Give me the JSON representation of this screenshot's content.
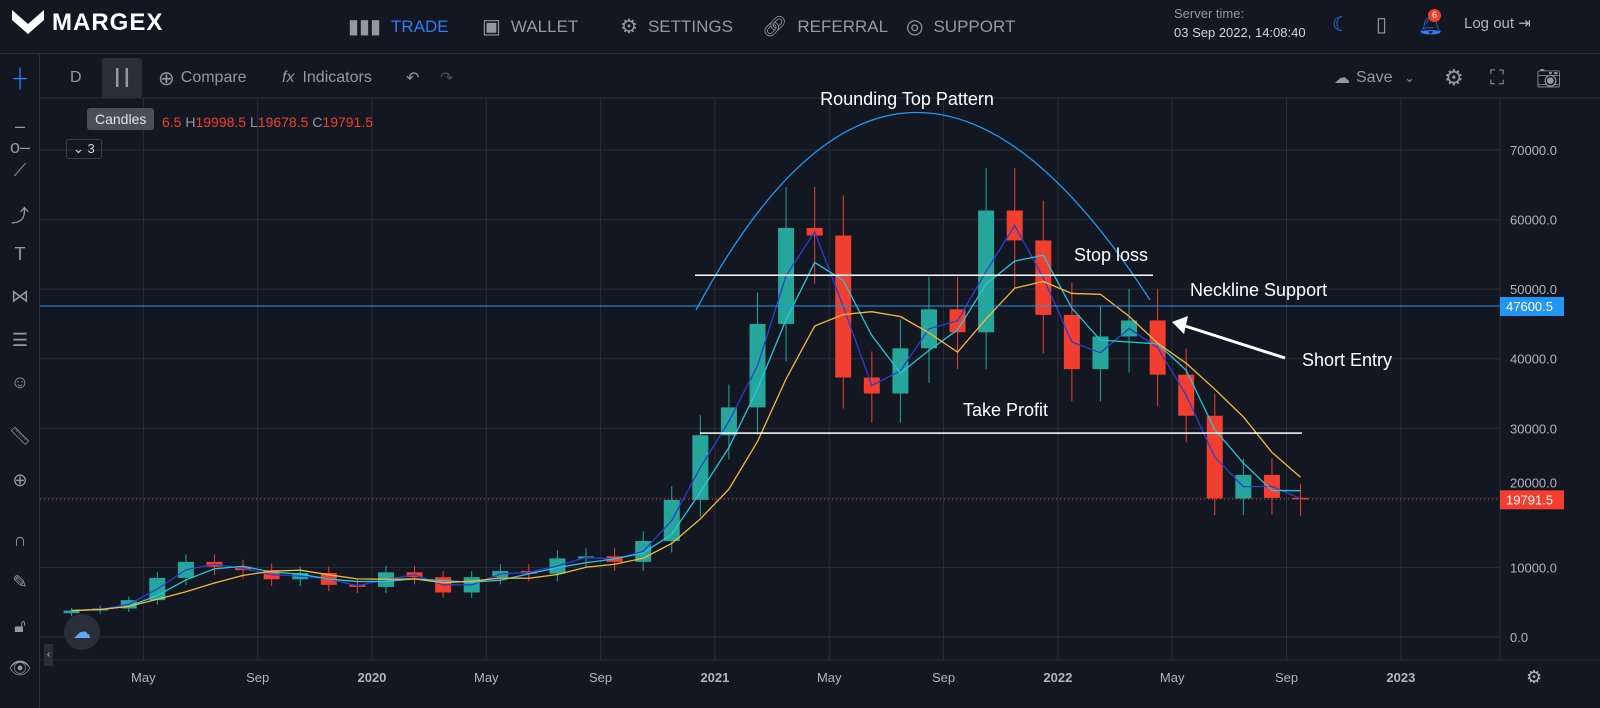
{
  "header": {
    "brand": "MARGEX",
    "nav": [
      {
        "label": "TRADE",
        "icon": "bar-chart-icon"
      },
      {
        "label": "WALLET",
        "icon": "wallet-icon"
      },
      {
        "label": "SETTINGS",
        "icon": "gear-icon"
      },
      {
        "label": "REFERRAL",
        "icon": "link-icon"
      },
      {
        "label": "SUPPORT",
        "icon": "lifebuoy-icon"
      }
    ],
    "server_time_label": "Server time:",
    "server_time": "03 Sep 2022, 14:08:40",
    "notifications": "6",
    "logout": "Log out"
  },
  "toolbar": {
    "interval": "D",
    "compare": "Compare",
    "indicators": "Indicators",
    "save": "Save",
    "tooltip": "Candles"
  },
  "legend": {
    "open_partial": "6.5",
    "h_label": "H",
    "high": "19998.5",
    "l_label": "L",
    "low": "19678.5",
    "c_label": "C",
    "close": "19791.5",
    "collapse_count": "3"
  },
  "colors": {
    "up": "#26a69a",
    "down": "#f23e2e",
    "accent": "#2f7cf6",
    "neckline": "#2196f3",
    "ma_fast": "#2a3fd0",
    "ma_mid": "#26c6da",
    "ma_slow": "#f5b73b"
  },
  "chart_data": {
    "type": "candlestick",
    "title": "Rounding Top Pattern",
    "x_ticks": [
      "May",
      "Sep",
      "2020",
      "May",
      "Sep",
      "2021",
      "May",
      "Sep",
      "2022",
      "May",
      "Sep",
      "2023"
    ],
    "y_ticks": [
      "70000.0",
      "60000.0",
      "50000.0",
      "40000.0",
      "30000.0",
      "20000.0",
      "10000.0",
      "0.0"
    ],
    "ylim": [
      0,
      70000
    ],
    "months": [
      "2019-02",
      "2019-03",
      "2019-04",
      "2019-05",
      "2019-06",
      "2019-07",
      "2019-08",
      "2019-09",
      "2019-10",
      "2019-11",
      "2019-12",
      "2020-01",
      "2020-02",
      "2020-03",
      "2020-04",
      "2020-05",
      "2020-06",
      "2020-07",
      "2020-08",
      "2020-09",
      "2020-10",
      "2020-11",
      "2020-12",
      "2021-01",
      "2021-02",
      "2021-03",
      "2021-04",
      "2021-05",
      "2021-06",
      "2021-07",
      "2021-08",
      "2021-09",
      "2021-10",
      "2021-11",
      "2021-12",
      "2022-01",
      "2022-02",
      "2022-03",
      "2022-04",
      "2022-05",
      "2022-06",
      "2022-07",
      "2022-08",
      "2022-09"
    ],
    "close": [
      3800,
      4100,
      5300,
      8500,
      10800,
      10100,
      9600,
      8300,
      9200,
      7500,
      7200,
      9300,
      8600,
      6400,
      8600,
      9500,
      9100,
      11300,
      11600,
      10800,
      13800,
      19700,
      29000,
      33000,
      45000,
      58800,
      57700,
      37300,
      35000,
      41500,
      47100,
      43800,
      61300,
      57000,
      46300,
      38500,
      43200,
      45500,
      37700,
      31800,
      19900,
      23300,
      20000,
      19791.5
    ],
    "annotations": {
      "stop_loss": "Stop loss",
      "take_profit": "Take Profit",
      "neckline": "Neckline Support",
      "short_entry": "Short Entry",
      "neckline_price": "47600.5",
      "last_price": "19791.5",
      "stop_loss_level": 52000,
      "take_profit_level": 29300
    }
  }
}
